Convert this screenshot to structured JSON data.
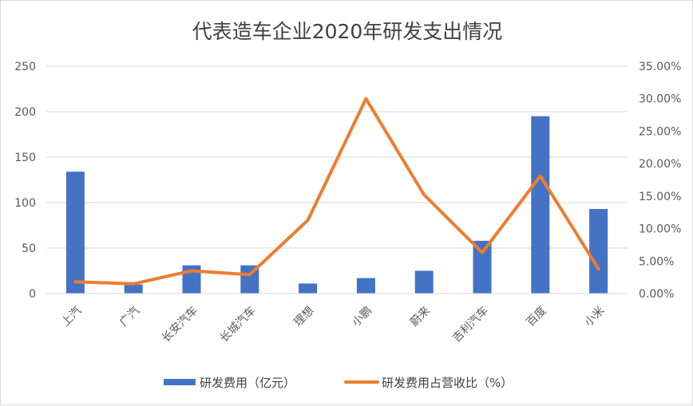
{
  "chart_data": {
    "type": "bar+line",
    "title": "代表造车企业2020年研发支出情况",
    "categories": [
      "上汽",
      "广汽",
      "长安汽车",
      "长城汽车",
      "理想",
      "小鹏",
      "蔚来",
      "吉利汽车",
      "百度",
      "小米"
    ],
    "series": [
      {
        "name": "研发费用（亿元）",
        "type": "bar",
        "axis": "left",
        "color": "#4472C4",
        "values": [
          134,
          10,
          31,
          31,
          11,
          17,
          25,
          58,
          195,
          93
        ]
      },
      {
        "name": "研发费用占营收比（%）",
        "type": "line",
        "axis": "right",
        "color": "#ED7D31",
        "values": [
          1.8,
          1.5,
          3.5,
          2.9,
          11.3,
          30.0,
          15.2,
          6.3,
          18.1,
          3.8
        ]
      }
    ],
    "left_axis": {
      "min": 0,
      "max": 250,
      "step": 50,
      "ticks": [
        "0",
        "50",
        "100",
        "150",
        "200",
        "250"
      ]
    },
    "right_axis": {
      "min": 0,
      "max": 35,
      "step": 5,
      "ticks": [
        "0.00%",
        "5.00%",
        "10.00%",
        "15.00%",
        "20.00%",
        "25.00%",
        "30.00%",
        "35.00%"
      ]
    },
    "gridlines": true,
    "legend_position": "bottom",
    "gridline_color": "#d9d9d9",
    "text_color": "#595959"
  }
}
